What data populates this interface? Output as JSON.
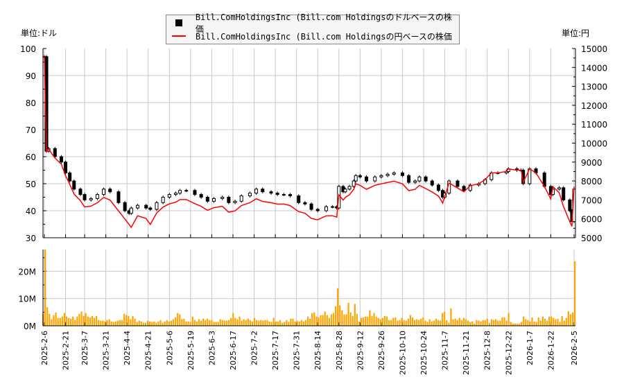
{
  "units": {
    "left": "単位:ドル",
    "right": "単位:円"
  },
  "legend": [
    {
      "label": "Bill.ComHoldingsInc (Bill.com Holdingsのドルベースの株価",
      "color": "#000000",
      "marker": "square"
    },
    {
      "label": "Bill.ComHoldingsInc (Bill.com Holdingsの円ベースの株価",
      "color": "#ff0000",
      "marker": "line"
    }
  ],
  "chart_data": [
    {
      "type": "candlestick+line",
      "x_axis": {
        "unit": "trading session",
        "ticks": [
          {
            "s": 0,
            "label": "2025-2-6"
          },
          {
            "s": 10,
            "label": "2025-2-21"
          },
          {
            "s": 19,
            "label": "2025-3-7"
          },
          {
            "s": 29,
            "label": "2025-3-21"
          },
          {
            "s": 39,
            "label": "2025-4-4"
          },
          {
            "s": 49,
            "label": "2025-4-21"
          },
          {
            "s": 59,
            "label": "2025-5-6"
          },
          {
            "s": 69,
            "label": "2025-5-19"
          },
          {
            "s": 79,
            "label": "2025-6-3"
          },
          {
            "s": 89,
            "label": "2025-6-17"
          },
          {
            "s": 99,
            "label": "2025-7-2"
          },
          {
            "s": 109,
            "label": "2025-7-17"
          },
          {
            "s": 119,
            "label": "2025-7-31"
          },
          {
            "s": 129,
            "label": "2025-8-14"
          },
          {
            "s": 139,
            "label": "2025-8-28"
          },
          {
            "s": 149,
            "label": "2025-9-12"
          },
          {
            "s": 159,
            "label": "2025-9-26"
          },
          {
            "s": 169,
            "label": "2025-10-10"
          },
          {
            "s": 179,
            "label": "2025-10-24"
          },
          {
            "s": 189,
            "label": "2025-11-7"
          },
          {
            "s": 199,
            "label": "2025-11-21"
          },
          {
            "s": 209,
            "label": "2025-12-8"
          },
          {
            "s": 219,
            "label": "2025-12-22"
          },
          {
            "s": 229,
            "label": "2026-1-7"
          },
          {
            "s": 239,
            "label": "2026-1-22"
          },
          {
            "s": 250,
            "label": "2026-2-5"
          }
        ],
        "range": [
          0,
          250
        ]
      },
      "y_left": {
        "range": [
          30,
          100
        ],
        "ticks": [
          30,
          40,
          50,
          60,
          70,
          80,
          90,
          100
        ]
      },
      "y_right": {
        "range": [
          5000,
          15000
        ],
        "ticks": [
          5000,
          6000,
          7000,
          8000,
          9000,
          10000,
          11000,
          12000,
          13000,
          14000,
          15000
        ]
      },
      "grid": true,
      "legend_position": "top-center",
      "series_points": [
        [
          0,
          97,
          14570
        ],
        [
          1,
          62,
          9570
        ],
        [
          2,
          63,
          9680
        ],
        [
          5,
          60,
          9210
        ],
        [
          8,
          58,
          8890
        ],
        [
          10,
          54,
          8280
        ],
        [
          12,
          51,
          7820
        ],
        [
          14,
          48,
          7310
        ],
        [
          17,
          46,
          6960
        ],
        [
          19,
          44,
          6630
        ],
        [
          22,
          44.5,
          6670
        ],
        [
          25,
          46,
          6850
        ],
        [
          28,
          48,
          7130
        ],
        [
          31,
          47,
          6990
        ],
        [
          35,
          43,
          6420
        ],
        [
          38,
          40,
          5990
        ],
        [
          40,
          39,
          5700
        ],
        [
          41,
          41,
          5550
        ],
        [
          44,
          42,
          6160
        ],
        [
          48,
          41,
          6020
        ],
        [
          50,
          40.5,
          5700
        ],
        [
          53,
          43,
          6310
        ],
        [
          56,
          45,
          6620
        ],
        [
          59,
          46,
          6790
        ],
        [
          62,
          46.5,
          6880
        ],
        [
          64,
          47.5,
          7020
        ],
        [
          67,
          47.5,
          7020
        ],
        [
          71,
          46,
          6800
        ],
        [
          74,
          45,
          6660
        ],
        [
          77,
          43.5,
          6450
        ],
        [
          80,
          44.5,
          6590
        ],
        [
          84,
          45,
          6660
        ],
        [
          87,
          43,
          6350
        ],
        [
          90,
          43.5,
          6420
        ],
        [
          93,
          45.5,
          6700
        ],
        [
          97,
          46.5,
          6850
        ],
        [
          100,
          48,
          7060
        ],
        [
          103,
          47,
          6920
        ],
        [
          107,
          46.5,
          6850
        ],
        [
          110,
          46,
          6780
        ],
        [
          113,
          46,
          6780
        ],
        [
          116,
          45.5,
          6700
        ],
        [
          120,
          43,
          6380
        ],
        [
          123,
          42.5,
          6300
        ],
        [
          126,
          40.5,
          6020
        ],
        [
          129,
          40,
          5950
        ],
        [
          133,
          41.5,
          6160
        ],
        [
          136,
          41.5,
          6160
        ],
        [
          138,
          41,
          6090
        ],
        [
          139,
          49,
          7270
        ],
        [
          141,
          47,
          6990
        ],
        [
          142,
          48,
          7130
        ],
        [
          144,
          49,
          7270
        ],
        [
          146,
          51,
          7560
        ],
        [
          147,
          53,
          7850
        ],
        [
          149,
          52.5,
          7770
        ],
        [
          152,
          51,
          7560
        ],
        [
          156,
          52.5,
          7770
        ],
        [
          159,
          53,
          7850
        ],
        [
          162,
          53.5,
          7920
        ],
        [
          165,
          54,
          7990
        ],
        [
          169,
          53,
          7850
        ],
        [
          172,
          50.5,
          7490
        ],
        [
          175,
          51,
          7560
        ],
        [
          177,
          52.5,
          7770
        ],
        [
          180,
          51,
          7600
        ],
        [
          183,
          49.5,
          7420
        ],
        [
          186,
          47.5,
          7200
        ],
        [
          188,
          45,
          6830
        ],
        [
          189,
          46.5,
          7210
        ],
        [
          191,
          51,
          7890
        ],
        [
          195,
          49,
          7630
        ],
        [
          198,
          47.5,
          7430
        ],
        [
          201,
          49.5,
          7750
        ],
        [
          205,
          50,
          7850
        ],
        [
          208,
          51.5,
          8070
        ],
        [
          211,
          54,
          8430
        ],
        [
          214,
          54,
          8430
        ],
        [
          218,
          54.5,
          8500
        ],
        [
          219,
          55.5,
          8640
        ],
        [
          223,
          55,
          8570
        ],
        [
          225,
          55,
          8570
        ],
        [
          226,
          50,
          7930
        ],
        [
          229,
          55.5,
          8640
        ],
        [
          232,
          54,
          8430
        ],
        [
          236,
          49,
          7710
        ],
        [
          239,
          46,
          7050
        ],
        [
          240,
          48,
          7700
        ],
        [
          243,
          48.5,
          7380
        ],
        [
          245,
          44,
          6650
        ],
        [
          248,
          40,
          5840
        ],
        [
          249,
          36,
          5600
        ],
        [
          250,
          48,
          7700
        ]
      ],
      "series_columns": [
        "session",
        "close_usd",
        "close_jpy"
      ]
    },
    {
      "type": "bar",
      "y_axis": {
        "range": [
          0,
          28
        ],
        "ticks": [
          {
            "v": 0,
            "label": "0M"
          },
          {
            "v": 10,
            "label": "10M"
          },
          {
            "v": 20,
            "label": "20M"
          }
        ]
      },
      "grid": true,
      "color": "#ffa500",
      "volume_millions": [
        4.4,
        32,
        6.8,
        4.4,
        2.4,
        3.9,
        4.9,
        2.9,
        2.9,
        3.4,
        4.7,
        3.4,
        2.9,
        2.6,
        3.4,
        2.1,
        3.4,
        4.4,
        5.2,
        3.6,
        4.7,
        3.4,
        3.1,
        3.6,
        2.9,
        3.6,
        2.1,
        1.9,
        1.9,
        1.6,
        2.1,
        2.4,
        1.6,
        1.4,
        1.6,
        1.9,
        2.1,
        2.1,
        4.4,
        3.9,
        3.6,
        2.4,
        3.6,
        2.6,
        1.4,
        1.9,
        1.6,
        1.1,
        1.1,
        1.9,
        1.6,
        1.4,
        1.6,
        1.1,
        1.6,
        2.1,
        1.1,
        1.6,
        2.1,
        1.6,
        1.9,
        2.4,
        3.1,
        4.7,
        4.2,
        2.4,
        2.6,
        1.6,
        1.6,
        1.4,
        3.4,
        2.1,
        1.6,
        2.4,
        1.9,
        2.6,
        2.1,
        2.6,
        2.1,
        2.1,
        1.4,
        1.4,
        1.4,
        2.4,
        2.1,
        1.9,
        1.9,
        2.1,
        2.9,
        4.7,
        2.9,
        2.4,
        3.4,
        1.9,
        2.4,
        2.1,
        2.6,
        2.1,
        1.6,
        2.9,
        2.1,
        1.9,
        2.1,
        1.9,
        2.1,
        2.1,
        1.6,
        1.4,
        2.9,
        1.6,
        1.6,
        2.1,
        1.1,
        1.4,
        2.1,
        1.4,
        2.6,
        2.6,
        1.6,
        1.9,
        1.6,
        2.1,
        1.6,
        2.1,
        3.4,
        2.6,
        4.7,
        4.9,
        3.4,
        3.1,
        3.9,
        3.9,
        5.2,
        3.9,
        2.9,
        4.2,
        4.7,
        7.2,
        13.8,
        7.5,
        5.7,
        4.2,
        4.2,
        8.5,
        4.9,
        3.6,
        8,
        4.4,
        1.6,
        2.9,
        3.1,
        3.4,
        3.4,
        5.7,
        3.6,
        4.7,
        3.4,
        2.9,
        2.4,
        2.9,
        3.6,
        3.4,
        2.1,
        2.1,
        2.9,
        3.1,
        1.9,
        2.1,
        2.9,
        2.1,
        1.9,
        2.6,
        3.9,
        3.1,
        2.1,
        2.4,
        2.1,
        2.6,
        3.1,
        1.9,
        1.4,
        2.4,
        1.6,
        1.9,
        2.6,
        2.1,
        1.9,
        4.7,
        5.2,
        2.1,
        1.1,
        6.4,
        2.4,
        2.6,
        2.1,
        2.9,
        2.1,
        2.9,
        2.4,
        1.9,
        1.4,
        1.6,
        0.8,
        2.1,
        1.9,
        1.6,
        2.1,
        2.1,
        2.6,
        1.1,
        2.4,
        2.1,
        2.4,
        1.9,
        1.9,
        3.1,
        3.1,
        1.9,
        4.7,
        1.4,
        0.8,
        0.8,
        0.8,
        0.8,
        1.4,
        3.4,
        2.4,
        2.1,
        1.6,
        3.1,
        1.6,
        1.4,
        3.1,
        1.9,
        3.4,
        2.6,
        1.9,
        3.4,
        3.4,
        2.9,
        2.4,
        2.6,
        1.4,
        3.6,
        1.9,
        2.9,
        5.4,
        4.2,
        4.9,
        23.7
      ]
    }
  ]
}
